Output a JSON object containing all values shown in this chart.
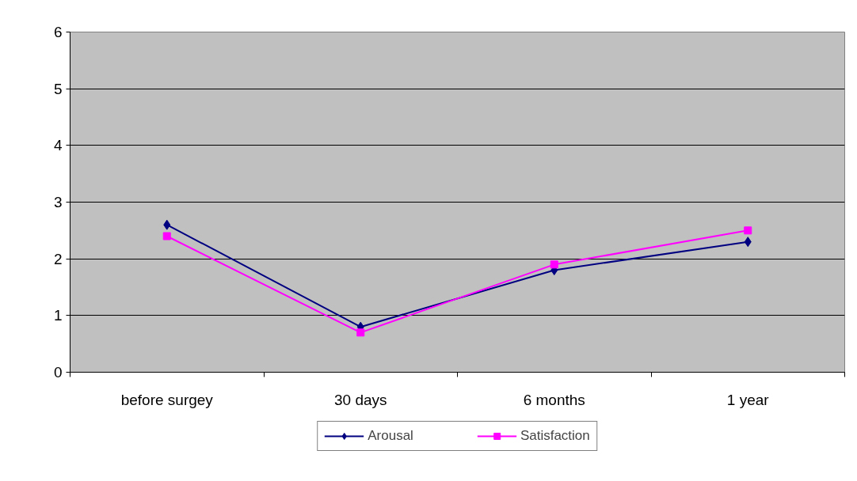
{
  "chart_data": {
    "type": "line",
    "categories": [
      "before surgey",
      "30 days",
      "6 months",
      "1 year"
    ],
    "series": [
      {
        "name": "Arousal",
        "color": "#000080",
        "marker": "diamond",
        "values": [
          2.6,
          0.8,
          1.8,
          2.3
        ]
      },
      {
        "name": "Satisfaction",
        "color": "#ff00ff",
        "marker": "square",
        "values": [
          2.4,
          0.7,
          1.9,
          2.5
        ]
      }
    ],
    "ylim": [
      0,
      6
    ],
    "yticks": [
      0,
      1,
      2,
      3,
      4,
      5,
      6
    ],
    "grid": "y",
    "legend": "bottom",
    "line_style": "solid"
  }
}
